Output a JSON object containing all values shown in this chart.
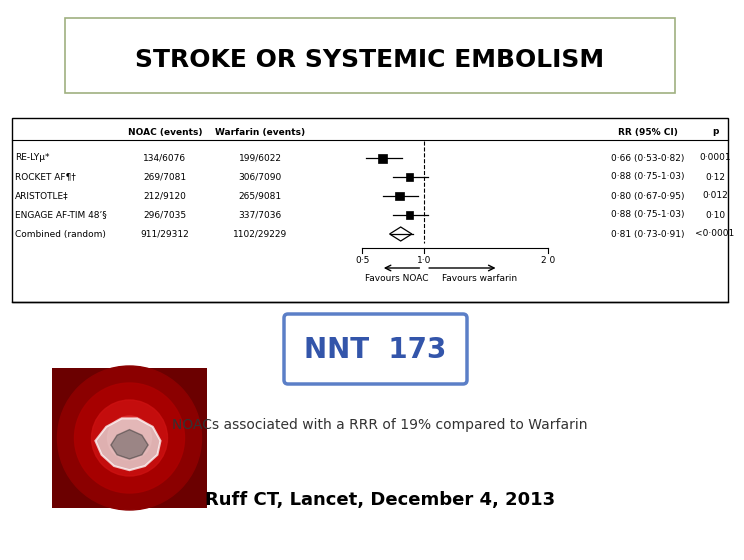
{
  "title": "STROKE OR SYSTEMIC EMBOLISM",
  "title_box_color": "#a0b080",
  "title_fontsize": 18,
  "title_font_weight": "bold",
  "background_color": "#ffffff",
  "forest_studies": [
    {
      "name": "RE-LYµ*",
      "noac": "134/6076",
      "warfarin": "199/6022",
      "rr": "0·66 (0·53-0·82)",
      "p": "0·0001",
      "point": 0.66,
      "lower": 0.53,
      "upper": 0.82,
      "weight": 1.0
    },
    {
      "name": "ROCKET AF¶†",
      "noac": "269/7081",
      "warfarin": "306/7090",
      "rr": "0·88 (0·75-1·03)",
      "p": "0·12",
      "point": 0.88,
      "lower": 0.75,
      "upper": 1.03,
      "weight": 0.85
    },
    {
      "name": "ARISTOTLE‡",
      "noac": "212/9120",
      "warfarin": "265/9081",
      "rr": "0·80 (0·67-0·95)",
      "p": "0·012",
      "point": 0.8,
      "lower": 0.67,
      "upper": 0.95,
      "weight": 0.9
    },
    {
      "name": "ENGAGE AF-TIM 48’§",
      "noac": "296/7035",
      "warfarin": "337/7036",
      "rr": "0·88 (0·75-1·03)",
      "p": "0·10",
      "point": 0.88,
      "lower": 0.75,
      "upper": 1.03,
      "weight": 0.85
    },
    {
      "name": "Combined (random)",
      "noac": "911/29312",
      "warfarin": "1102/29229",
      "rr": "0·81 (0·73-0·91)",
      "p": "<0·0001",
      "point": 0.81,
      "lower": 0.73,
      "upper": 0.91,
      "weight": -1
    }
  ],
  "x_min": 0.4,
  "x_max": 2.3,
  "x_ticks": [
    0.5,
    1.0,
    2.0
  ],
  "x_tick_labels": [
    "0·5",
    "1·0",
    "2 0"
  ],
  "favours_left": "Favours NOAC",
  "favours_right": "Favours warfarin",
  "ref_line": 1.0,
  "nnt_text": "NNT  173",
  "nnt_box_color": "#5b7fc7",
  "nnt_fontsize": 20,
  "nnt_font_color": "#3355aa",
  "subtitle": "NOACs associated with a RRR of 19% compared to Warfarin",
  "subtitle_fontsize": 10,
  "subtitle_color": "#333333",
  "citation": "Ruff CT, Lancet, December 4, 2013",
  "citation_fontsize": 13,
  "citation_font_weight": "bold",
  "citation_color": "#000000"
}
